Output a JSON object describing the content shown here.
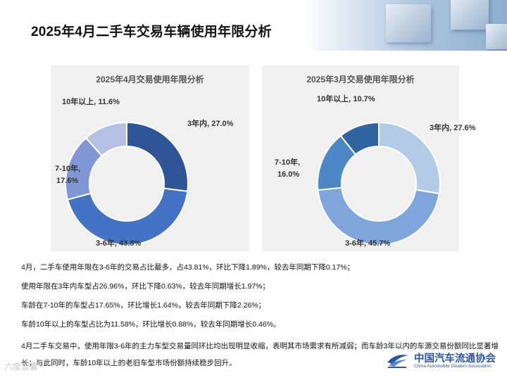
{
  "header": {
    "title": "2025年4月二手车交易车辆使用年限分析"
  },
  "chart_data": [
    {
      "type": "pie",
      "title": "2025年4月交易使用年限分析",
      "categories": [
        "3年内",
        "3-6年",
        "7-10年",
        "10年以上"
      ],
      "values": [
        27.0,
        43.8,
        17.6,
        11.6
      ],
      "labels": [
        "3年内, 27.0%",
        "3-6年, 43.8%",
        "7-10年,",
        "17.6%",
        "10年以上, 11.6%"
      ],
      "colors": [
        "#2f5596",
        "#4472c4",
        "#7f97d4",
        "#b5c0e2"
      ]
    },
    {
      "type": "pie",
      "title": "2025年3月交易使用年限分析",
      "categories": [
        "3年内",
        "3-6年",
        "7-10年",
        "10年以上"
      ],
      "values": [
        27.6,
        45.7,
        16.0,
        10.7
      ],
      "labels": [
        "3年内, 27.6%",
        "3-6年, 45.7%",
        "7-10年,",
        "16.0%",
        "10年以上, 10.7%"
      ],
      "colors": [
        "#b4cbe8",
        "#7ea6db",
        "#4e87c6",
        "#2f64a0"
      ]
    }
  ],
  "notes": [
    "4月，二手车使用年限在3-6年的交易占比最多，占43.81%，环比下降1.89%，较去年同期下降0.17%；",
    "使用年限在3年内车型占26.96%，环比下降0.63%，较去年同期增长1.97%；",
    "车龄在7-10年的车型占17.65%，环比增长1.64%，较去年同期下降2.26%；",
    "车龄10年以上的车型占比为11.58%，环比增长0.88%，较去年同期增长0.46%。",
    "4月二手车交易中，使用年限3-6年的主力车型交易量同环比均出现明显收缩，表明其市场需求有所减弱；而车龄3年以内的车源交易份额同比显著增长；与此同时，车龄10年以上的老旧车型市场份额持续稳步回升。"
  ],
  "logo": {
    "cn": "中国汽车流通协会",
    "en": "China Automobile Dealers Association"
  },
  "watermark": "六度智囊"
}
